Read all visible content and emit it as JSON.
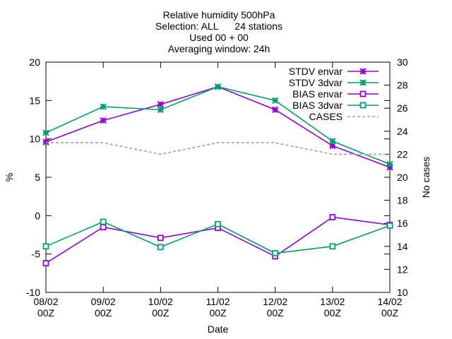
{
  "chart_data": {
    "type": "line",
    "title_lines": [
      "Relative humidity 500hPa",
      "Selection: ALL      24 stations",
      "Used 00 + 00",
      "Averaging window: 24h"
    ],
    "xlabel": "Date",
    "ylabel": "%",
    "y2label": "No cases",
    "categories": [
      [
        "08/02",
        "00Z"
      ],
      [
        "09/02",
        "00Z"
      ],
      [
        "10/02",
        "00Z"
      ],
      [
        "11/02",
        "00Z"
      ],
      [
        "12/02",
        "00Z"
      ],
      [
        "13/02",
        "00Z"
      ],
      [
        "14/02",
        "00Z"
      ]
    ],
    "ylim": [
      -10,
      20
    ],
    "yticks": [
      -10,
      -5,
      0,
      5,
      10,
      15,
      20
    ],
    "y2lim": [
      10,
      30
    ],
    "y2ticks": [
      10,
      12,
      14,
      16,
      18,
      20,
      22,
      24,
      26,
      28,
      30
    ],
    "legend_position": "top-right",
    "grid": false,
    "series": [
      {
        "name": "STDV envar",
        "axis": "y",
        "color": "#9400d3",
        "marker": "star",
        "dash": "solid",
        "values": [
          9.6,
          12.4,
          14.5,
          16.8,
          13.8,
          9.1,
          6.3
        ]
      },
      {
        "name": "STDV 3dvar",
        "axis": "y",
        "color": "#009e73",
        "marker": "star",
        "dash": "solid",
        "values": [
          10.8,
          14.2,
          13.8,
          16.8,
          15.0,
          9.7,
          6.7
        ]
      },
      {
        "name": "BIAS envar",
        "axis": "y",
        "color": "#9400d3",
        "marker": "square",
        "dash": "solid",
        "values": [
          -6.2,
          -1.5,
          -2.9,
          -1.6,
          -5.3,
          -0.2,
          -1.2
        ]
      },
      {
        "name": "BIAS 3dvar",
        "axis": "y",
        "color": "#009e73",
        "marker": "square",
        "dash": "solid",
        "values": [
          -4.0,
          -0.8,
          -4.1,
          -1.1,
          -4.9,
          -4.0,
          -1.3
        ]
      },
      {
        "name": "CASES",
        "axis": "y2",
        "color": "#a0a0a0",
        "marker": "none",
        "dash": "dashed",
        "values": [
          23,
          23,
          22,
          23,
          23,
          22,
          22
        ]
      }
    ]
  }
}
